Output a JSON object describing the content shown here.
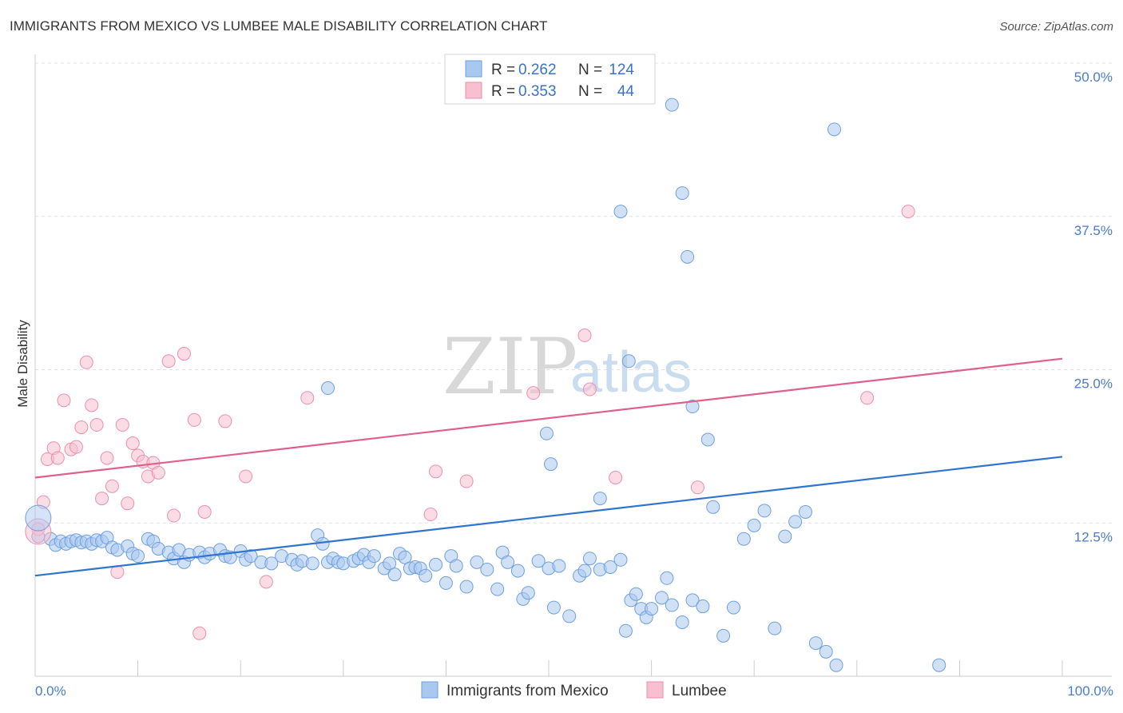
{
  "colors": {
    "blue_fill": "#a9c8ef",
    "blue_stroke": "#6f9fe0",
    "blue_line": "#2f75d0",
    "pink_fill": "#f7bfd0",
    "pink_stroke": "#ec8fae",
    "pink_line": "#e0608c",
    "grid": "#e0e0e0",
    "tick_text": "#4a7cc9"
  },
  "chart_data": {
    "type": "scatter",
    "title": "IMMIGRANTS FROM MEXICO VS LUMBEE MALE DISABILITY CORRELATION CHART",
    "source": "Source: ZipAtlas.com",
    "xlabel": "",
    "ylabel": "Male Disability",
    "xlim": [
      0,
      100
    ],
    "ylim": [
      0,
      50
    ],
    "x_tick_labels": [
      "0.0%",
      "100.0%"
    ],
    "y_ticks": [
      12.5,
      25.0,
      37.5,
      50.0
    ],
    "y_tick_labels": [
      "12.5%",
      "25.0%",
      "37.5%",
      "50.0%"
    ],
    "grid": "horizontal dashed",
    "watermark": {
      "zip": "ZIP",
      "atlas": "atlas"
    },
    "legend_top": [
      {
        "r_label": "R = ",
        "r_value": "0.262",
        "n_label": "N = ",
        "n_value": "124"
      },
      {
        "r_label": "R = ",
        "r_value": "0.353",
        "n_label": "N = ",
        "n_value": "44"
      }
    ],
    "series": [
      {
        "name": "Immigrants from Mexico",
        "color": "blue",
        "trend": {
          "x": [
            0,
            100
          ],
          "y": [
            8.2,
            17.9
          ]
        },
        "points": [
          [
            0.3,
            11.4
          ],
          [
            1.5,
            11.2
          ],
          [
            2.0,
            10.7
          ],
          [
            2.5,
            11.0
          ],
          [
            3.0,
            10.8
          ],
          [
            3.5,
            11.0
          ],
          [
            4.0,
            11.1
          ],
          [
            4.5,
            10.9
          ],
          [
            5.0,
            11.0
          ],
          [
            5.5,
            10.8
          ],
          [
            6.0,
            11.1
          ],
          [
            6.5,
            11.0
          ],
          [
            7.0,
            11.3
          ],
          [
            7.5,
            10.5
          ],
          [
            8.0,
            10.3
          ],
          [
            9.0,
            10.6
          ],
          [
            9.5,
            10.0
          ],
          [
            10.0,
            9.8
          ],
          [
            11.0,
            11.2
          ],
          [
            11.5,
            11.0
          ],
          [
            12.0,
            10.4
          ],
          [
            13.0,
            10.1
          ],
          [
            13.5,
            9.6
          ],
          [
            14.0,
            10.3
          ],
          [
            14.5,
            9.3
          ],
          [
            15.0,
            9.9
          ],
          [
            16.0,
            10.1
          ],
          [
            16.5,
            9.7
          ],
          [
            17.0,
            10.0
          ],
          [
            18.0,
            10.3
          ],
          [
            18.5,
            9.8
          ],
          [
            19.0,
            9.7
          ],
          [
            20.0,
            10.2
          ],
          [
            20.5,
            9.5
          ],
          [
            21.0,
            9.8
          ],
          [
            22.0,
            9.3
          ],
          [
            23.0,
            9.2
          ],
          [
            24.0,
            9.8
          ],
          [
            25.0,
            9.5
          ],
          [
            25.5,
            9.1
          ],
          [
            26.0,
            9.4
          ],
          [
            27.0,
            9.2
          ],
          [
            27.5,
            11.5
          ],
          [
            28.0,
            10.8
          ],
          [
            28.5,
            9.3
          ],
          [
            29.0,
            9.6
          ],
          [
            29.5,
            9.3
          ],
          [
            30.0,
            9.2
          ],
          [
            31.0,
            9.4
          ],
          [
            31.5,
            9.6
          ],
          [
            32.0,
            9.9
          ],
          [
            32.5,
            9.3
          ],
          [
            33.0,
            9.8
          ],
          [
            34.0,
            8.8
          ],
          [
            34.5,
            9.2
          ],
          [
            35.0,
            8.3
          ],
          [
            35.5,
            10.0
          ],
          [
            36.0,
            9.7
          ],
          [
            36.5,
            8.8
          ],
          [
            37.0,
            8.9
          ],
          [
            37.5,
            8.8
          ],
          [
            38.0,
            8.2
          ],
          [
            39.0,
            9.1
          ],
          [
            40.0,
            7.6
          ],
          [
            40.5,
            9.8
          ],
          [
            41.0,
            9.0
          ],
          [
            42.0,
            7.3
          ],
          [
            43.0,
            9.3
          ],
          [
            44.0,
            8.7
          ],
          [
            45.0,
            7.1
          ],
          [
            45.5,
            10.1
          ],
          [
            46.0,
            9.3
          ],
          [
            47.0,
            8.6
          ],
          [
            47.5,
            6.3
          ],
          [
            48.0,
            6.8
          ],
          [
            49.0,
            9.4
          ],
          [
            50.0,
            8.8
          ],
          [
            50.5,
            5.6
          ],
          [
            51.0,
            9.0
          ],
          [
            52.0,
            4.9
          ],
          [
            53.0,
            8.2
          ],
          [
            53.5,
            8.6
          ],
          [
            54.0,
            9.6
          ],
          [
            55.0,
            8.7
          ],
          [
            56.0,
            8.9
          ],
          [
            57.0,
            9.5
          ],
          [
            57.5,
            3.7
          ],
          [
            58.0,
            6.2
          ],
          [
            58.5,
            6.7
          ],
          [
            59.0,
            5.5
          ],
          [
            59.5,
            4.8
          ],
          [
            60.0,
            5.5
          ],
          [
            61.0,
            6.4
          ],
          [
            61.5,
            8.0
          ],
          [
            62.0,
            5.8
          ],
          [
            63.0,
            4.4
          ],
          [
            64.0,
            6.2
          ],
          [
            65.0,
            5.7
          ],
          [
            66.0,
            13.8
          ],
          [
            67.0,
            3.3
          ],
          [
            68.0,
            5.6
          ],
          [
            69.0,
            11.2
          ],
          [
            70.0,
            12.3
          ],
          [
            71.0,
            13.5
          ],
          [
            72.0,
            3.9
          ],
          [
            73.0,
            11.4
          ],
          [
            74.0,
            12.6
          ],
          [
            75.0,
            13.4
          ],
          [
            76.0,
            2.7
          ],
          [
            77.0,
            2.0
          ],
          [
            28.5,
            23.5
          ],
          [
            49.8,
            19.8
          ],
          [
            50.2,
            17.3
          ],
          [
            55.0,
            14.5
          ],
          [
            57.8,
            25.7
          ],
          [
            57.0,
            37.9
          ],
          [
            62.0,
            46.6
          ],
          [
            63.0,
            39.4
          ],
          [
            63.5,
            34.2
          ],
          [
            64.0,
            22.0
          ],
          [
            77.8,
            44.6
          ],
          [
            78.0,
            0.9
          ],
          [
            88.0,
            0.9
          ],
          [
            65.5,
            19.3
          ]
        ]
      },
      {
        "name": "Lumbee",
        "color": "pink",
        "trend": {
          "x": [
            0,
            100
          ],
          "y": [
            16.2,
            25.9
          ]
        },
        "points": [
          [
            0.3,
            12.0
          ],
          [
            0.8,
            14.2
          ],
          [
            1.2,
            17.7
          ],
          [
            1.8,
            18.6
          ],
          [
            2.2,
            17.8
          ],
          [
            2.8,
            22.5
          ],
          [
            3.5,
            18.5
          ],
          [
            4.0,
            18.7
          ],
          [
            4.5,
            20.3
          ],
          [
            5.0,
            25.6
          ],
          [
            5.5,
            22.1
          ],
          [
            6.0,
            20.5
          ],
          [
            6.5,
            14.5
          ],
          [
            7.0,
            17.8
          ],
          [
            7.5,
            15.5
          ],
          [
            8.0,
            8.5
          ],
          [
            8.5,
            20.5
          ],
          [
            9.0,
            14.1
          ],
          [
            9.5,
            19.0
          ],
          [
            10.0,
            18.0
          ],
          [
            10.5,
            17.5
          ],
          [
            11.0,
            16.3
          ],
          [
            11.5,
            17.4
          ],
          [
            12.0,
            16.6
          ],
          [
            13.0,
            25.7
          ],
          [
            13.5,
            13.1
          ],
          [
            14.5,
            26.3
          ],
          [
            15.5,
            20.9
          ],
          [
            16.0,
            3.5
          ],
          [
            16.5,
            13.4
          ],
          [
            18.5,
            20.8
          ],
          [
            20.5,
            16.3
          ],
          [
            22.5,
            7.7
          ],
          [
            26.5,
            22.7
          ],
          [
            38.5,
            13.2
          ],
          [
            39.0,
            16.7
          ],
          [
            42.0,
            15.9
          ],
          [
            48.5,
            23.1
          ],
          [
            53.5,
            27.8
          ],
          [
            54.0,
            23.4
          ],
          [
            56.5,
            16.2
          ],
          [
            64.5,
            15.4
          ],
          [
            81.0,
            22.7
          ],
          [
            85.0,
            37.9
          ]
        ]
      }
    ]
  }
}
